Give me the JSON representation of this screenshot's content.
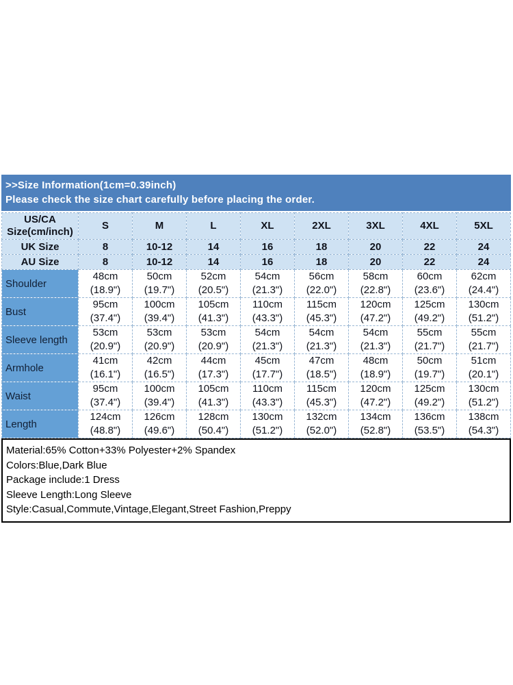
{
  "colors": {
    "band_bg": "#4f81bd",
    "header_cell_bg": "#cfe2f3",
    "label_column_bg": "#64a0d6",
    "grid_border": "#98b6d4",
    "notes_border": "#000000"
  },
  "header": {
    "title": ">>Size Information(1cm=0.39inch)",
    "subtitle": "Please check the size chart carefully before placing the order."
  },
  "size_chart": {
    "corner": {
      "line1": "US/CA",
      "line2": "Size(cm/inch)"
    },
    "size_columns": [
      "S",
      "M",
      "L",
      "XL",
      "2XL",
      "3XL",
      "4XL",
      "5XL"
    ],
    "region_rows": [
      {
        "label": "UK Size",
        "values": [
          "8",
          "10-12",
          "14",
          "16",
          "18",
          "20",
          "22",
          "24"
        ]
      },
      {
        "label": "AU Size",
        "values": [
          "8",
          "10-12",
          "14",
          "16",
          "18",
          "20",
          "22",
          "24"
        ]
      }
    ],
    "measurement_rows": [
      {
        "label": "Shoulder",
        "cm": [
          "48cm",
          "50cm",
          "52cm",
          "54cm",
          "56cm",
          "58cm",
          "60cm",
          "62cm"
        ],
        "inch": [
          "(18.9\")",
          "(19.7\")",
          "(20.5\")",
          "(21.3\")",
          "(22.0\")",
          "(22.8\")",
          "(23.6\")",
          "(24.4\")"
        ]
      },
      {
        "label": "Bust",
        "cm": [
          "95cm",
          "100cm",
          "105cm",
          "110cm",
          "115cm",
          "120cm",
          "125cm",
          "130cm"
        ],
        "inch": [
          "(37.4\")",
          "(39.4\")",
          "(41.3\")",
          "(43.3\")",
          "(45.3\")",
          "(47.2\")",
          "(49.2\")",
          "(51.2\")"
        ]
      },
      {
        "label": "Sleeve length",
        "cm": [
          "53cm",
          "53cm",
          "53cm",
          "54cm",
          "54cm",
          "54cm",
          "55cm",
          "55cm"
        ],
        "inch": [
          "(20.9\")",
          "(20.9\")",
          "(20.9\")",
          "(21.3\")",
          "(21.3\")",
          "(21.3\")",
          "(21.7\")",
          "(21.7\")"
        ]
      },
      {
        "label": "Armhole",
        "cm": [
          "41cm",
          "42cm",
          "44cm",
          "45cm",
          "47cm",
          "48cm",
          "50cm",
          "51cm"
        ],
        "inch": [
          "(16.1\")",
          "(16.5\")",
          "(17.3\")",
          "(17.7\")",
          "(18.5\")",
          "(18.9\")",
          "(19.7\")",
          "(20.1\")"
        ]
      },
      {
        "label": "Waist",
        "cm": [
          "95cm",
          "100cm",
          "105cm",
          "110cm",
          "115cm",
          "120cm",
          "125cm",
          "130cm"
        ],
        "inch": [
          "(37.4\")",
          "(39.4\")",
          "(41.3\")",
          "(43.3\")",
          "(45.3\")",
          "(47.2\")",
          "(49.2\")",
          "(51.2\")"
        ]
      },
      {
        "label": "Length",
        "cm": [
          "124cm",
          "126cm",
          "128cm",
          "130cm",
          "132cm",
          "134cm",
          "136cm",
          "138cm"
        ],
        "inch": [
          "(48.8\")",
          "(49.6\")",
          "(50.4\")",
          "(51.2\")",
          "(52.0\")",
          "(52.8\")",
          "(53.5\")",
          "(54.3\")"
        ]
      }
    ]
  },
  "notes": {
    "lines": [
      "Material:65% Cotton+33% Polyester+2% Spandex",
      "Colors:Blue,Dark Blue",
      "Package include:1 Dress",
      "Sleeve Length:Long Sleeve",
      "Style:Casual,Commute,Vintage,Elegant,Street Fashion,Preppy"
    ]
  }
}
